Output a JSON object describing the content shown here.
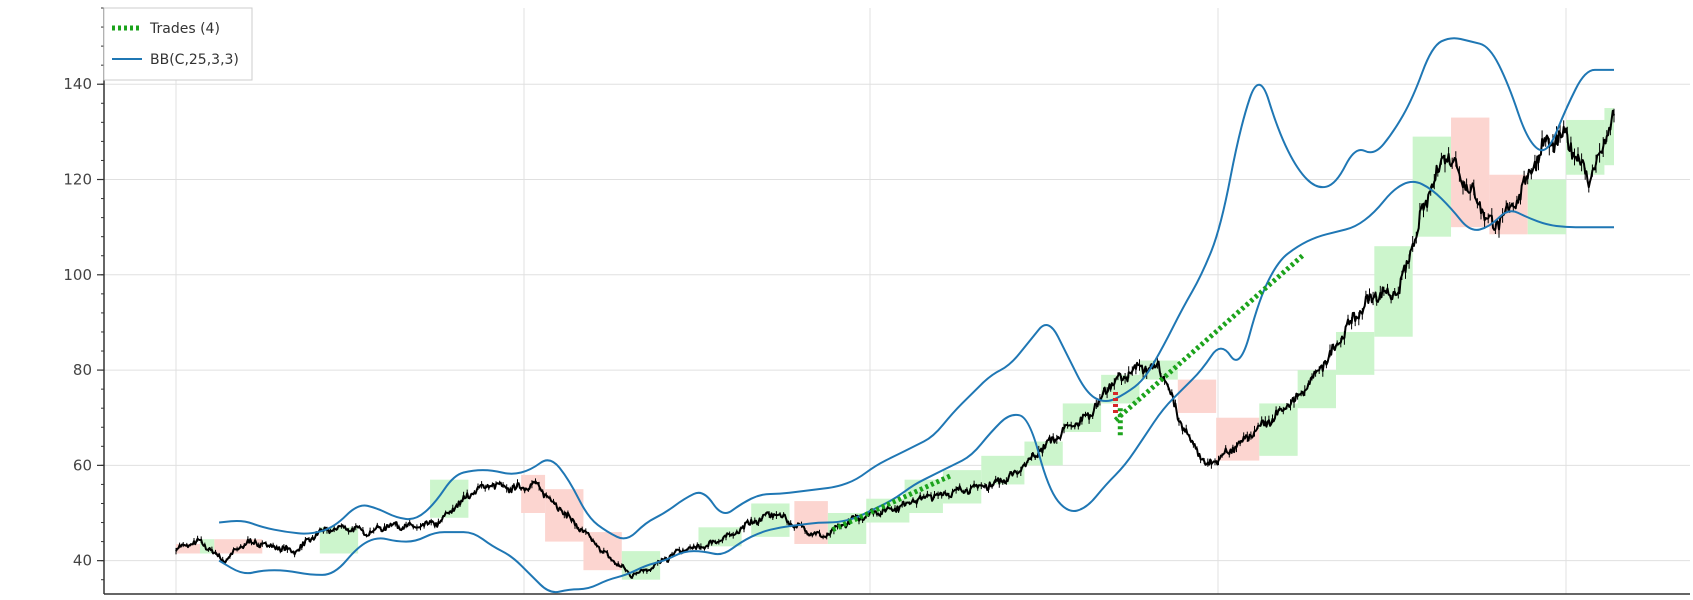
{
  "chart_data": {
    "type": "candlestick",
    "title": "",
    "xlabel": "",
    "ylabel": "",
    "ylim": [
      33,
      156
    ],
    "y_ticks": [
      40,
      60,
      80,
      100,
      120,
      140
    ],
    "y_tick_labels": [
      "40",
      "60",
      "80",
      "100",
      "120",
      "140"
    ],
    "x_index_range": [
      0,
      300
    ],
    "grid": true,
    "legend_position": "top-left",
    "legend": [
      {
        "label": "Trades (4)",
        "color": "#1ca31c",
        "style": "dashed-thick"
      },
      {
        "label": "BB(C,25,3,3)",
        "color": "#1f77b4",
        "style": "line"
      }
    ],
    "colors": {
      "price": "#000000",
      "bollinger": "#1f77b4",
      "trade": "#1ca31c",
      "up_block": "#ccf5cc",
      "down_block": "#fcd5d0",
      "grid": "#e0e0e0",
      "axis": "#333333"
    },
    "close": {
      "x": [
        0,
        5,
        10,
        15,
        20,
        25,
        30,
        35,
        40,
        45,
        50,
        55,
        60,
        65,
        70,
        75,
        80,
        85,
        90,
        95,
        100,
        105,
        110,
        115,
        120,
        125,
        130,
        135,
        140,
        145,
        150,
        155,
        160,
        165,
        170,
        175,
        180,
        185,
        190,
        195,
        200,
        205,
        210,
        215,
        220,
        225,
        230,
        235,
        240,
        245,
        250,
        255,
        260,
        265,
        270,
        275,
        280,
        285,
        290,
        295,
        300
      ],
      "y": [
        42.5,
        44,
        40,
        44,
        43,
        42,
        46,
        47,
        46,
        47.5,
        47,
        48,
        53,
        56,
        55,
        56,
        51,
        46,
        41,
        37,
        39,
        42,
        43,
        45,
        48,
        50,
        47,
        45,
        48,
        50,
        51,
        53,
        54,
        55,
        56,
        58,
        63,
        67,
        70,
        77,
        80,
        81,
        68,
        60,
        63,
        67,
        71,
        75,
        82,
        90,
        96,
        96,
        113,
        126,
        118,
        110,
        116,
        127,
        129,
        120,
        133
      ]
    },
    "bollinger": {
      "x": [
        9,
        14,
        18,
        23,
        28,
        33,
        38,
        42,
        46,
        50,
        54,
        58,
        62,
        66,
        70,
        74,
        78,
        82,
        86,
        90,
        94,
        98,
        102,
        106,
        110,
        114,
        118,
        122,
        126,
        130,
        134,
        138,
        142,
        146,
        150,
        154,
        158,
        162,
        166,
        170,
        174,
        178,
        182,
        186,
        190,
        194,
        198,
        202,
        206,
        210,
        214,
        218,
        222,
        226,
        230,
        234,
        238,
        242,
        246,
        250,
        254,
        258,
        262,
        266,
        270,
        274,
        278,
        282,
        286,
        290,
        294,
        298,
        300
      ],
      "upper": [
        48,
        48.5,
        47,
        46,
        45.5,
        47,
        52,
        51,
        49,
        48.5,
        52,
        58,
        59,
        59,
        58,
        59,
        62,
        57,
        49,
        46,
        44,
        48,
        50,
        53,
        55,
        49,
        52,
        54,
        54,
        54.5,
        55,
        55.5,
        57,
        60,
        62,
        64,
        66,
        71,
        75,
        79,
        81,
        86,
        91,
        83,
        75,
        73,
        75,
        78,
        85,
        93,
        100,
        110,
        131,
        143,
        130,
        122,
        118,
        119,
        127,
        125,
        130,
        137,
        148,
        150,
        149,
        148,
        140,
        128,
        125,
        135,
        143,
        143,
        143
      ],
      "lower": [
        40,
        37,
        38,
        38,
        37,
        37,
        43,
        45,
        44,
        44,
        46,
        46,
        46,
        43,
        41,
        37,
        33,
        34,
        34,
        36,
        37,
        39,
        40,
        42,
        42,
        41,
        44,
        46,
        47,
        47.5,
        48,
        48,
        49,
        51,
        53,
        56,
        58,
        60,
        62,
        67,
        71,
        70,
        55,
        50,
        51,
        56,
        60,
        66,
        72,
        76,
        80,
        86,
        80,
        95,
        103,
        106,
        108,
        109,
        110,
        113,
        118,
        120,
        118,
        114,
        109,
        110,
        114,
        112,
        110.5,
        110,
        110,
        110,
        110
      ]
    },
    "blocks": [
      {
        "x0": 0,
        "x1": 5,
        "low": 41.5,
        "high": 43.5,
        "dir": "down"
      },
      {
        "x0": 5,
        "x1": 8,
        "low": 41.5,
        "high": 44.5,
        "dir": "up"
      },
      {
        "x0": 8,
        "x1": 18,
        "low": 41.5,
        "high": 44.5,
        "dir": "down"
      },
      {
        "x0": 30,
        "x1": 38,
        "low": 41.5,
        "high": 47,
        "dir": "up"
      },
      {
        "x0": 53,
        "x1": 61,
        "low": 49,
        "high": 57,
        "dir": "up"
      },
      {
        "x0": 72,
        "x1": 77,
        "low": 50,
        "high": 58,
        "dir": "down"
      },
      {
        "x0": 77,
        "x1": 85,
        "low": 44,
        "high": 55,
        "dir": "down"
      },
      {
        "x0": 85,
        "x1": 93,
        "low": 38,
        "high": 46,
        "dir": "down"
      },
      {
        "x0": 93,
        "x1": 101,
        "low": 36,
        "high": 42,
        "dir": "up"
      },
      {
        "x0": 109,
        "x1": 118,
        "low": 43,
        "high": 47,
        "dir": "up"
      },
      {
        "x0": 120,
        "x1": 128,
        "low": 45,
        "high": 52,
        "dir": "up"
      },
      {
        "x0": 129,
        "x1": 136,
        "low": 43.5,
        "high": 52.5,
        "dir": "down"
      },
      {
        "x0": 136,
        "x1": 144,
        "low": 43.5,
        "high": 50,
        "dir": "up"
      },
      {
        "x0": 144,
        "x1": 153,
        "low": 48,
        "high": 53,
        "dir": "up"
      },
      {
        "x0": 152,
        "x1": 160,
        "low": 50,
        "high": 57,
        "dir": "up"
      },
      {
        "x0": 160,
        "x1": 168,
        "low": 52,
        "high": 59,
        "dir": "up"
      },
      {
        "x0": 168,
        "x1": 177,
        "low": 56,
        "high": 62,
        "dir": "up"
      },
      {
        "x0": 177,
        "x1": 185,
        "low": 60,
        "high": 65,
        "dir": "up"
      },
      {
        "x0": 185,
        "x1": 193,
        "low": 67,
        "high": 73,
        "dir": "up"
      },
      {
        "x0": 193,
        "x1": 201,
        "low": 73,
        "high": 79,
        "dir": "up"
      },
      {
        "x0": 201,
        "x1": 209,
        "low": 78,
        "high": 82,
        "dir": "up"
      },
      {
        "x0": 209,
        "x1": 217,
        "low": 71,
        "high": 78,
        "dir": "down"
      },
      {
        "x0": 217,
        "x1": 226,
        "low": 61,
        "high": 70,
        "dir": "down"
      },
      {
        "x0": 226,
        "x1": 234,
        "low": 62,
        "high": 73,
        "dir": "up"
      },
      {
        "x0": 234,
        "x1": 242,
        "low": 72,
        "high": 80,
        "dir": "up"
      },
      {
        "x0": 242,
        "x1": 250,
        "low": 79,
        "high": 88,
        "dir": "up"
      },
      {
        "x0": 250,
        "x1": 258,
        "low": 87,
        "high": 106,
        "dir": "up"
      },
      {
        "x0": 258,
        "x1": 266,
        "low": 108,
        "high": 129,
        "dir": "up"
      },
      {
        "x0": 266,
        "x1": 274,
        "low": 110,
        "high": 133,
        "dir": "down"
      },
      {
        "x0": 274,
        "x1": 282,
        "low": 108.5,
        "high": 121,
        "dir": "down"
      },
      {
        "x0": 282,
        "x1": 290,
        "low": 108.5,
        "high": 120,
        "dir": "up"
      },
      {
        "x0": 290,
        "x1": 298,
        "low": 121,
        "high": 132.5,
        "dir": "up"
      },
      {
        "x0": 298,
        "x1": 300,
        "low": 123,
        "high": 135,
        "dir": "up"
      }
    ],
    "trades": [
      {
        "x0": 137,
        "y0": 46.5,
        "x1": 162,
        "y1": 58
      },
      {
        "x0": 196,
        "y0": 69.5,
        "x1": 235,
        "y1": 104
      },
      {
        "x0": 196,
        "y0": 71,
        "x1": 196,
        "y1": 76
      },
      {
        "x0": 197,
        "y0": 72,
        "x1": 197,
        "y1": 66
      }
    ]
  }
}
